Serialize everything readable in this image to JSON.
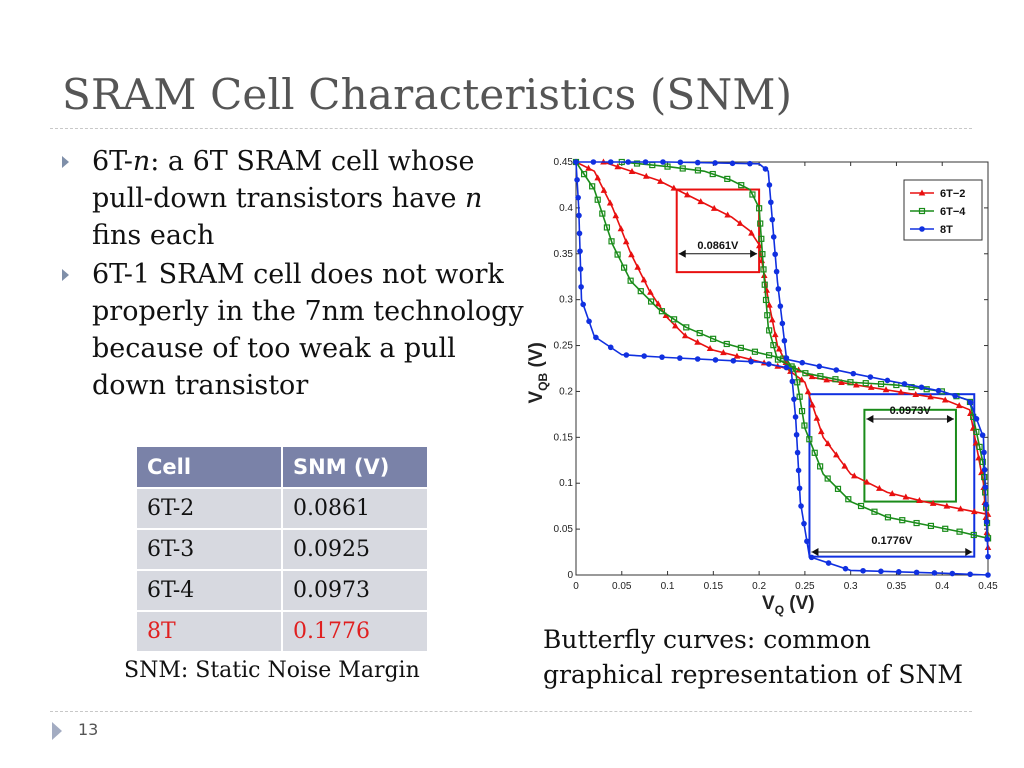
{
  "slide": {
    "title": "SRAM Cell Characteristics (SNM)",
    "page_number": "13"
  },
  "bullets": [
    {
      "prefix": "6T-",
      "italic": "n",
      "rest": ": a 6T SRAM cell whose pull-down transistors have ",
      "italic2": "n",
      "rest2": " fins each"
    },
    {
      "prefix": "6T-1 SRAM cell does not work properly in the 7nm technology because of too weak a pull down transistor",
      "italic": "",
      "rest": "",
      "italic2": "",
      "rest2": ""
    }
  ],
  "table": {
    "headers": [
      "Cell",
      "SNM (V)"
    ],
    "rows": [
      [
        "6T-2",
        "0.0861"
      ],
      [
        "6T-3",
        "0.0925"
      ],
      [
        "6T-4",
        "0.0973"
      ],
      [
        "8T",
        "0.1776"
      ]
    ],
    "caption": "SNM: Static Noise Margin"
  },
  "chart_caption": [
    "Butterfly curves: common",
    "graphical representation of SNM"
  ],
  "chart_data": {
    "type": "line",
    "xlabel": "V_Q (V)",
    "ylabel": "V_QB (V)",
    "xlim": [
      0,
      0.45
    ],
    "ylim": [
      0,
      0.45
    ],
    "xticks": [
      "0",
      "0.05",
      "0.1",
      "0.15",
      "0.2",
      "0.25",
      "0.3",
      "0.35",
      "0.4",
      "0.45"
    ],
    "yticks": [
      "0",
      "0.05",
      "0.1",
      "0.15",
      "0.2",
      "0.25",
      "0.3",
      "0.35",
      "0.4",
      "0.45"
    ],
    "legend_position": "top-right",
    "colors": {
      "6T-2": "#e81010",
      "6T-4": "#1a8c1a",
      "8T": "#1030e0"
    },
    "series": [
      {
        "name": "6T−2",
        "color": "#e81010",
        "marker": "triangle",
        "curve_a": [
          [
            0.03,
            0.45
          ],
          [
            0.06,
            0.44
          ],
          [
            0.09,
            0.43
          ],
          [
            0.12,
            0.415
          ],
          [
            0.15,
            0.4
          ],
          [
            0.17,
            0.39
          ],
          [
            0.19,
            0.375
          ],
          [
            0.2,
            0.36
          ],
          [
            0.21,
            0.3
          ],
          [
            0.22,
            0.25
          ],
          [
            0.23,
            0.23
          ],
          [
            0.26,
            0.215
          ],
          [
            0.3,
            0.208
          ],
          [
            0.35,
            0.2
          ],
          [
            0.4,
            0.192
          ],
          [
            0.43,
            0.18
          ],
          [
            0.445,
            0.1
          ],
          [
            0.45,
            0.03
          ]
        ],
        "curve_b": [
          [
            0.0,
            0.45
          ],
          [
            0.02,
            0.44
          ],
          [
            0.04,
            0.4
          ],
          [
            0.06,
            0.35
          ],
          [
            0.08,
            0.31
          ],
          [
            0.1,
            0.28
          ],
          [
            0.12,
            0.26
          ],
          [
            0.15,
            0.245
          ],
          [
            0.19,
            0.235
          ],
          [
            0.23,
            0.225
          ],
          [
            0.25,
            0.21
          ],
          [
            0.27,
            0.15
          ],
          [
            0.3,
            0.11
          ],
          [
            0.34,
            0.09
          ],
          [
            0.38,
            0.08
          ],
          [
            0.42,
            0.072
          ],
          [
            0.45,
            0.066
          ]
        ]
      },
      {
        "name": "6T−4",
        "color": "#1a8c1a",
        "marker": "square",
        "curve_a": [
          [
            0.05,
            0.45
          ],
          [
            0.1,
            0.445
          ],
          [
            0.14,
            0.44
          ],
          [
            0.17,
            0.43
          ],
          [
            0.19,
            0.42
          ],
          [
            0.2,
            0.4
          ],
          [
            0.205,
            0.33
          ],
          [
            0.21,
            0.27
          ],
          [
            0.22,
            0.235
          ],
          [
            0.25,
            0.22
          ],
          [
            0.3,
            0.21
          ],
          [
            0.35,
            0.207
          ],
          [
            0.4,
            0.2
          ],
          [
            0.43,
            0.19
          ],
          [
            0.445,
            0.12
          ],
          [
            0.45,
            0.04
          ]
        ],
        "curve_b": [
          [
            0.0,
            0.45
          ],
          [
            0.02,
            0.42
          ],
          [
            0.04,
            0.36
          ],
          [
            0.06,
            0.32
          ],
          [
            0.09,
            0.29
          ],
          [
            0.12,
            0.27
          ],
          [
            0.16,
            0.253
          ],
          [
            0.2,
            0.242
          ],
          [
            0.23,
            0.235
          ],
          [
            0.24,
            0.22
          ],
          [
            0.25,
            0.16
          ],
          [
            0.27,
            0.11
          ],
          [
            0.3,
            0.08
          ],
          [
            0.34,
            0.063
          ],
          [
            0.38,
            0.055
          ],
          [
            0.42,
            0.047
          ],
          [
            0.45,
            0.04
          ]
        ]
      },
      {
        "name": "8T",
        "color": "#1030e0",
        "marker": "circle",
        "curve_a": [
          [
            0.0,
            0.45
          ],
          [
            0.1,
            0.45
          ],
          [
            0.2,
            0.448
          ],
          [
            0.21,
            0.44
          ],
          [
            0.22,
            0.32
          ],
          [
            0.23,
            0.235
          ],
          [
            0.3,
            0.22
          ],
          [
            0.35,
            0.21
          ],
          [
            0.4,
            0.2
          ],
          [
            0.43,
            0.19
          ],
          [
            0.445,
            0.15
          ],
          [
            0.45,
            0.02
          ]
        ],
        "curve_b": [
          [
            0.0,
            0.45
          ],
          [
            0.003,
            0.4
          ],
          [
            0.006,
            0.3
          ],
          [
            0.02,
            0.26
          ],
          [
            0.05,
            0.24
          ],
          [
            0.1,
            0.237
          ],
          [
            0.2,
            0.232
          ],
          [
            0.235,
            0.225
          ],
          [
            0.24,
            0.17
          ],
          [
            0.245,
            0.08
          ],
          [
            0.255,
            0.02
          ],
          [
            0.3,
            0.005
          ],
          [
            0.4,
            0.002
          ],
          [
            0.45,
            0.0
          ]
        ]
      }
    ],
    "annotations": [
      {
        "label": "0.0861V",
        "color": "#e81010",
        "box": [
          0.11,
          0.2,
          0.33,
          0.42
        ]
      },
      {
        "label": "0.0973V",
        "color": "#1a8c1a",
        "box": [
          0.315,
          0.415,
          0.08,
          0.18
        ]
      },
      {
        "label": "0.1776V",
        "color": "#1030e0",
        "box": [
          0.255,
          0.435,
          0.02,
          0.197
        ]
      }
    ]
  }
}
